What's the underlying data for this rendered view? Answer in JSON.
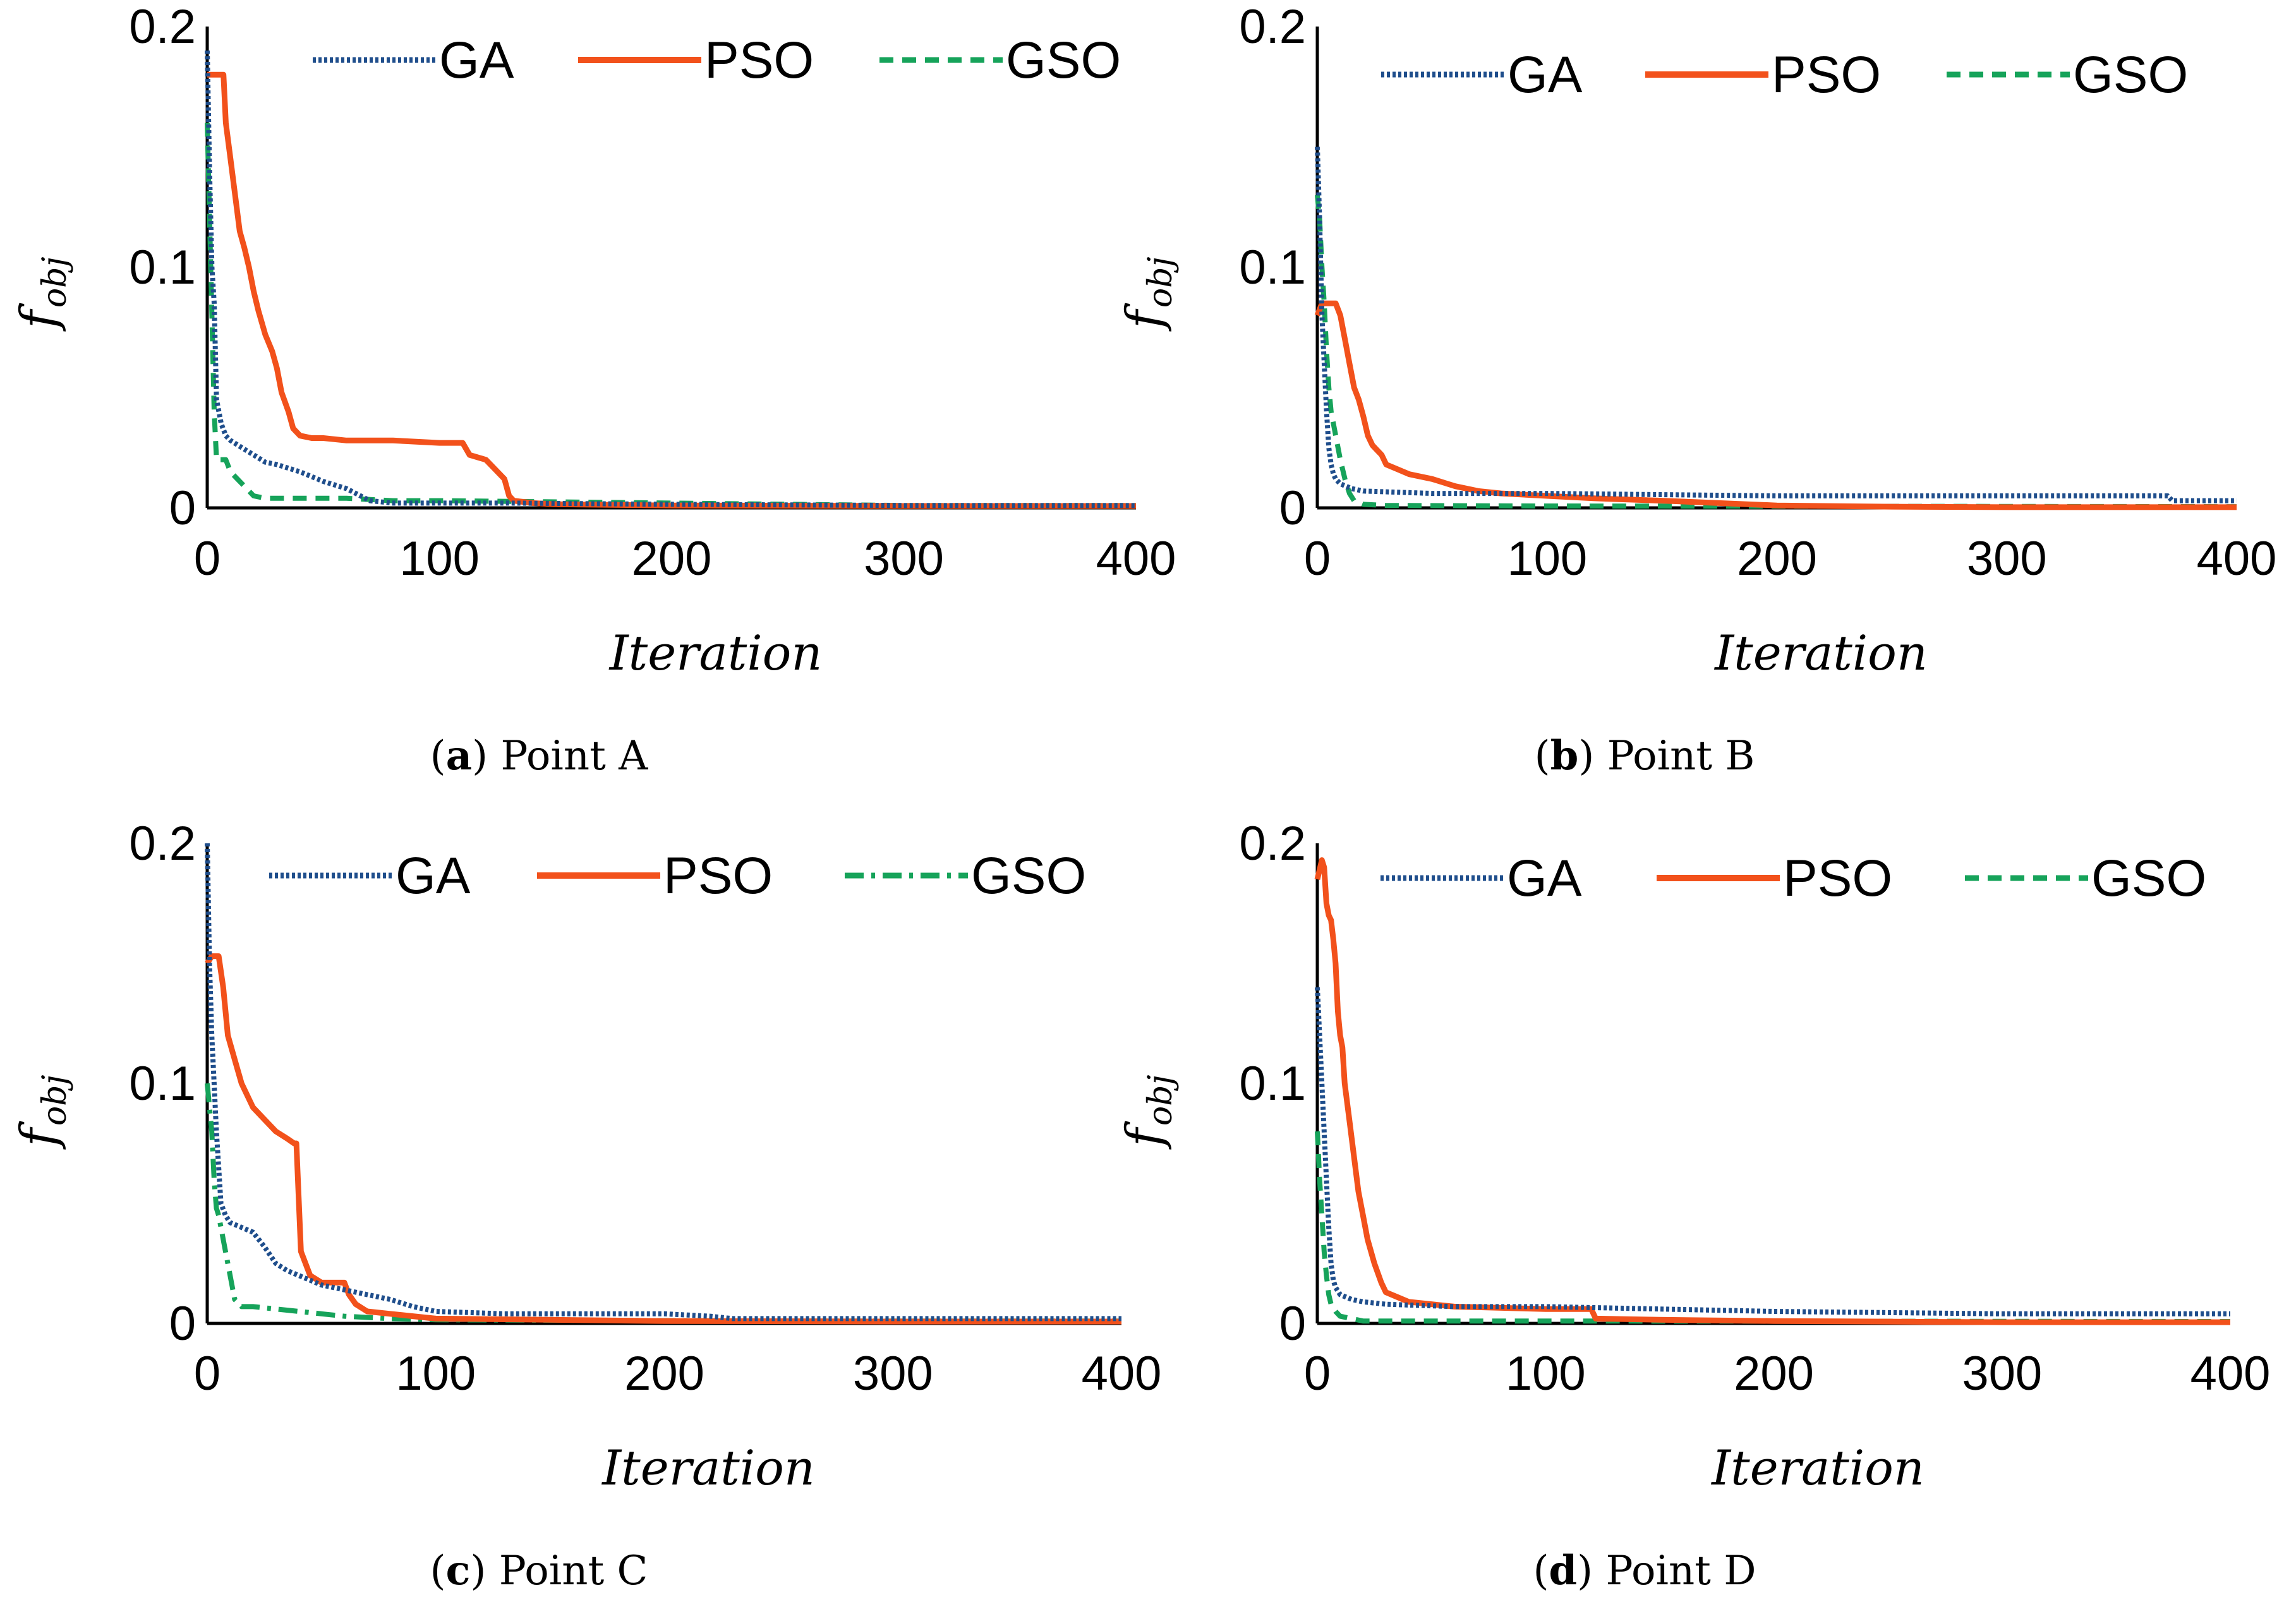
{
  "figure": {
    "colors": {
      "GA": "#1f4e8c",
      "PSO": "#f2511b",
      "GSO": "#16a35a",
      "axis": "#000000"
    }
  },
  "chart_data": [
    {
      "type": "line",
      "caption_letter": "a",
      "caption_text": "Point A",
      "xlabel": "Iteration",
      "ylabel_main": "f",
      "ylabel_sub": "obj",
      "xlim": [
        0,
        400
      ],
      "ylim": [
        0,
        0.2
      ],
      "xticks": [
        "0",
        "100",
        "200",
        "300",
        "400"
      ],
      "yticks": [
        "0",
        "0.1",
        "0.2"
      ],
      "legend": [
        "GA",
        "PSO",
        "GSO"
      ],
      "series": [
        {
          "name": "GA",
          "style": "dotted",
          "x": [
            0,
            1,
            2,
            3,
            4,
            6,
            8,
            10,
            15,
            20,
            25,
            30,
            40,
            50,
            60,
            70,
            80,
            100,
            130,
            200,
            300,
            400
          ],
          "y": [
            0.19,
            0.14,
            0.1,
            0.085,
            0.045,
            0.035,
            0.03,
            0.028,
            0.025,
            0.022,
            0.019,
            0.018,
            0.015,
            0.011,
            0.008,
            0.003,
            0.002,
            0.002,
            0.002,
            0.0015,
            0.001,
            0.001
          ]
        },
        {
          "name": "PSO",
          "style": "solid",
          "x": [
            0,
            7,
            8,
            10,
            12,
            14,
            16,
            18,
            20,
            22,
            25,
            28,
            30,
            32,
            35,
            37,
            40,
            45,
            50,
            60,
            80,
            100,
            110,
            113,
            120,
            128,
            130,
            132,
            140,
            150,
            200,
            300,
            400
          ],
          "y": [
            0.18,
            0.18,
            0.16,
            0.145,
            0.13,
            0.115,
            0.108,
            0.1,
            0.09,
            0.082,
            0.072,
            0.065,
            0.058,
            0.048,
            0.04,
            0.033,
            0.03,
            0.029,
            0.029,
            0.028,
            0.028,
            0.027,
            0.027,
            0.022,
            0.02,
            0.012,
            0.005,
            0.003,
            0.002,
            0.0015,
            0.001,
            0.0008,
            0.0008
          ]
        },
        {
          "name": "GSO",
          "style": "dashed",
          "x": [
            0,
            1,
            2,
            3,
            4,
            8,
            10,
            15,
            20,
            25,
            40,
            60,
            80,
            100,
            200,
            300,
            400
          ],
          "y": [
            0.16,
            0.12,
            0.08,
            0.04,
            0.02,
            0.02,
            0.015,
            0.01,
            0.005,
            0.004,
            0.004,
            0.004,
            0.003,
            0.003,
            0.002,
            0.001,
            0.001
          ]
        }
      ]
    },
    {
      "type": "line",
      "caption_letter": "b",
      "caption_text": "Point B",
      "xlabel": "Iteration",
      "ylabel_main": "f",
      "ylabel_sub": "obj",
      "xlim": [
        0,
        400
      ],
      "ylim": [
        0,
        0.2
      ],
      "xticks": [
        "0",
        "100",
        "200",
        "300",
        "400"
      ],
      "yticks": [
        "0",
        "0.1",
        "0.2"
      ],
      "legend": [
        "GA",
        "PSO",
        "GSO"
      ],
      "series": [
        {
          "name": "GA",
          "style": "dotted",
          "x": [
            0,
            1,
            2,
            3,
            4,
            5,
            6,
            7,
            8,
            10,
            15,
            20,
            50,
            100,
            200,
            300,
            370,
            372,
            400
          ],
          "y": [
            0.15,
            0.12,
            0.08,
            0.06,
            0.04,
            0.025,
            0.018,
            0.014,
            0.012,
            0.01,
            0.008,
            0.007,
            0.006,
            0.006,
            0.005,
            0.005,
            0.005,
            0.003,
            0.003
          ]
        },
        {
          "name": "PSO",
          "style": "solid",
          "x": [
            0,
            2,
            8,
            10,
            12,
            14,
            16,
            18,
            20,
            22,
            24,
            26,
            28,
            30,
            35,
            40,
            50,
            60,
            70,
            80,
            100,
            120,
            150,
            200,
            250,
            300,
            400
          ],
          "y": [
            0.08,
            0.085,
            0.085,
            0.08,
            0.07,
            0.06,
            0.05,
            0.045,
            0.038,
            0.03,
            0.026,
            0.024,
            0.022,
            0.018,
            0.016,
            0.014,
            0.012,
            0.009,
            0.007,
            0.006,
            0.005,
            0.004,
            0.003,
            0.001,
            0.0005,
            0.0003,
            0.0003
          ]
        },
        {
          "name": "GSO",
          "style": "dashed",
          "x": [
            0,
            1,
            2,
            3,
            4,
            5,
            6,
            8,
            10,
            12,
            14,
            16,
            20,
            30,
            100,
            400
          ],
          "y": [
            0.13,
            0.12,
            0.1,
            0.085,
            0.065,
            0.05,
            0.04,
            0.03,
            0.02,
            0.012,
            0.006,
            0.003,
            0.0015,
            0.001,
            0.0008,
            0.0005
          ]
        }
      ]
    },
    {
      "type": "line",
      "caption_letter": "c",
      "caption_text": "Point C",
      "xlabel": "Iteration",
      "ylabel_main": "f",
      "ylabel_sub": "obj",
      "xlim": [
        0,
        400
      ],
      "ylim": [
        0,
        0.2
      ],
      "xticks": [
        "0",
        "100",
        "200",
        "300",
        "400"
      ],
      "yticks": [
        "0",
        "0.1",
        "0.2"
      ],
      "legend": [
        "GA",
        "PSO",
        "GSO"
      ],
      "series": [
        {
          "name": "GA",
          "style": "dotted",
          "x": [
            0,
            1,
            2,
            3,
            4,
            5,
            6,
            8,
            10,
            15,
            20,
            25,
            30,
            35,
            40,
            45,
            50,
            60,
            70,
            80,
            90,
            100,
            130,
            200,
            220,
            230,
            300,
            400
          ],
          "y": [
            0.2,
            0.15,
            0.12,
            0.1,
            0.08,
            0.065,
            0.05,
            0.045,
            0.042,
            0.04,
            0.038,
            0.032,
            0.025,
            0.022,
            0.02,
            0.018,
            0.016,
            0.014,
            0.012,
            0.01,
            0.007,
            0.005,
            0.004,
            0.004,
            0.003,
            0.002,
            0.002,
            0.002
          ]
        },
        {
          "name": "PSO",
          "style": "solid",
          "x": [
            0,
            2,
            5,
            7,
            9,
            12,
            15,
            20,
            25,
            30,
            35,
            38,
            39,
            41,
            45,
            50,
            60,
            62,
            65,
            70,
            80,
            90,
            100,
            150,
            200,
            300,
            400
          ],
          "y": [
            0.15,
            0.153,
            0.153,
            0.14,
            0.12,
            0.11,
            0.1,
            0.09,
            0.085,
            0.08,
            0.077,
            0.075,
            0.075,
            0.03,
            0.02,
            0.017,
            0.017,
            0.012,
            0.008,
            0.005,
            0.004,
            0.003,
            0.002,
            0.0015,
            0.001,
            0.0008,
            0.0008
          ]
        },
        {
          "name": "GSO",
          "style": "dashdot",
          "x": [
            0,
            2,
            3,
            4,
            5,
            6,
            8,
            10,
            12,
            15,
            20,
            30,
            40,
            50,
            60,
            80,
            100,
            250,
            400
          ],
          "y": [
            0.1,
            0.08,
            0.06,
            0.048,
            0.045,
            0.04,
            0.03,
            0.02,
            0.01,
            0.007,
            0.007,
            0.006,
            0.005,
            0.004,
            0.003,
            0.002,
            0.0015,
            0.001,
            0.001
          ]
        }
      ]
    },
    {
      "type": "line",
      "caption_letter": "d",
      "caption_text": "Point D",
      "xlabel": "Iteration",
      "ylabel_main": "f",
      "ylabel_sub": "obj",
      "xlim": [
        0,
        400
      ],
      "ylim": [
        0,
        0.2
      ],
      "xticks": [
        "0",
        "100",
        "200",
        "300",
        "400"
      ],
      "yticks": [
        "0",
        "0.1",
        "0.2"
      ],
      "legend": [
        "GA",
        "PSO",
        "GSO"
      ],
      "series": [
        {
          "name": "GA",
          "style": "dotted",
          "x": [
            0,
            1,
            2,
            3,
            4,
            5,
            6,
            7,
            8,
            10,
            15,
            20,
            30,
            60,
            100,
            150,
            200,
            300,
            400
          ],
          "y": [
            0.14,
            0.12,
            0.1,
            0.08,
            0.06,
            0.04,
            0.025,
            0.018,
            0.015,
            0.012,
            0.01,
            0.009,
            0.008,
            0.007,
            0.007,
            0.006,
            0.005,
            0.004,
            0.004
          ]
        },
        {
          "name": "PSO",
          "style": "solid",
          "x": [
            0,
            2,
            3,
            4,
            5,
            6,
            7,
            8,
            9,
            10,
            11,
            12,
            14,
            16,
            18,
            20,
            22,
            25,
            28,
            30,
            35,
            40,
            50,
            60,
            100,
            120,
            122,
            150,
            200,
            300,
            400
          ],
          "y": [
            0.185,
            0.193,
            0.19,
            0.175,
            0.17,
            0.168,
            0.16,
            0.15,
            0.13,
            0.12,
            0.115,
            0.1,
            0.085,
            0.07,
            0.055,
            0.045,
            0.035,
            0.025,
            0.017,
            0.013,
            0.011,
            0.009,
            0.008,
            0.007,
            0.006,
            0.006,
            0.002,
            0.0015,
            0.001,
            0.0005,
            0.0005
          ]
        },
        {
          "name": "GSO",
          "style": "dashed",
          "x": [
            0,
            1,
            2,
            3,
            4,
            5,
            6,
            8,
            10,
            15,
            20,
            100,
            400
          ],
          "y": [
            0.08,
            0.06,
            0.045,
            0.03,
            0.02,
            0.012,
            0.008,
            0.005,
            0.003,
            0.002,
            0.001,
            0.001,
            0.0008
          ]
        }
      ]
    }
  ]
}
